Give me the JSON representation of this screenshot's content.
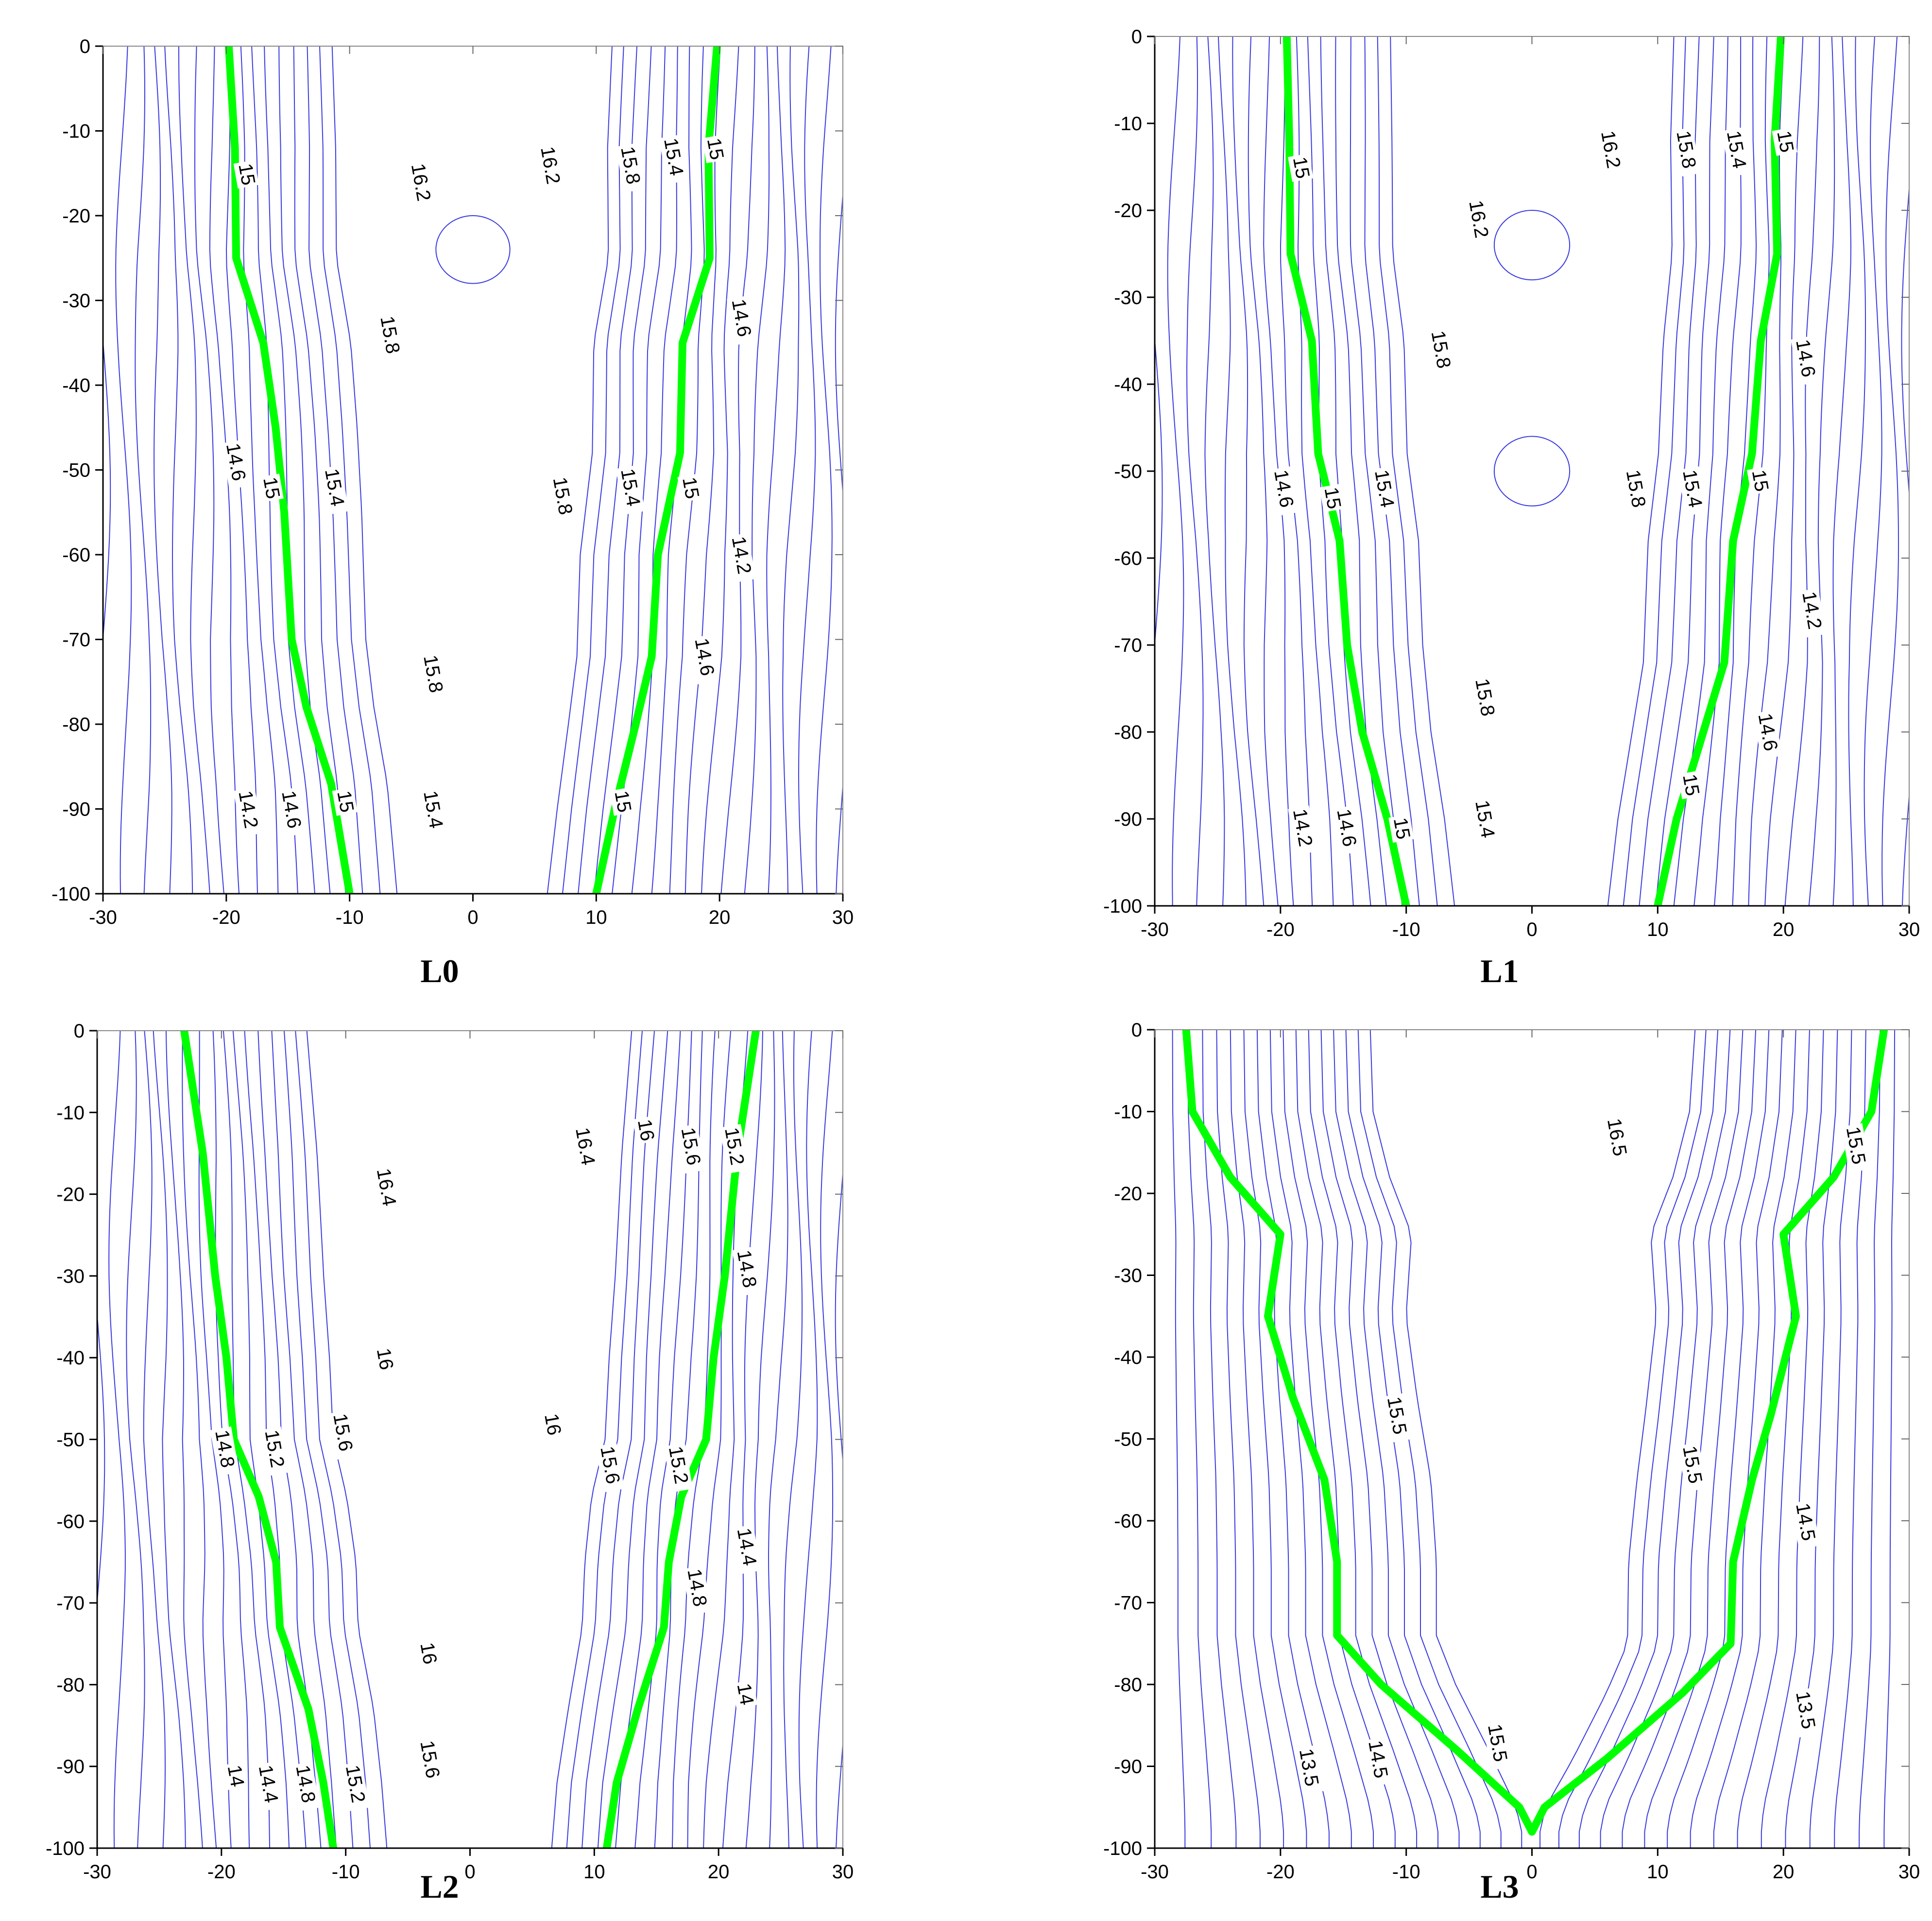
{
  "style": {
    "contour_color": "#3a3ae0",
    "highlight_color": "#00ff00",
    "axis_color": "#000000"
  },
  "chart_data": [
    {
      "type": "contour",
      "caption": "L0",
      "xlim": [
        -30,
        30
      ],
      "ylim": [
        -100,
        0
      ],
      "xticks": [
        "-30",
        "-20",
        "-10",
        "0",
        "10",
        "20",
        "30"
      ],
      "yticks": [
        "0",
        "-10",
        "-20",
        "-30",
        "-40",
        "-50",
        "-60",
        "-70",
        "-80",
        "-90",
        "-100"
      ],
      "highlight_level": 15,
      "highlight_paths": [
        [
          [
            -19.8,
            0
          ],
          [
            -19.3,
            -12
          ],
          [
            -19.2,
            -25
          ],
          [
            -17,
            -35
          ],
          [
            -16,
            -45
          ],
          [
            -15.3,
            -55
          ],
          [
            -14.7,
            -70
          ],
          [
            -13.5,
            -78
          ],
          [
            -11.5,
            -87
          ],
          [
            -10,
            -100
          ]
        ],
        [
          [
            19.8,
            0
          ],
          [
            19.1,
            -12
          ],
          [
            19.2,
            -25
          ],
          [
            17,
            -35
          ],
          [
            16.8,
            -48
          ],
          [
            15,
            -60
          ],
          [
            14.5,
            -72
          ],
          [
            13.2,
            -80
          ],
          [
            11.5,
            -90
          ],
          [
            10,
            -100
          ]
        ]
      ],
      "contour_labels": [
        {
          "text": "15",
          "x": -19.0,
          "y": -14
        },
        {
          "text": "15",
          "x": -17.0,
          "y": -51
        },
        {
          "text": "15",
          "x": -11.0,
          "y": -88
        },
        {
          "text": "14.6",
          "x": -20.0,
          "y": -47
        },
        {
          "text": "14.2",
          "x": -19.0,
          "y": -88
        },
        {
          "text": "14.6",
          "x": -15.5,
          "y": -88
        },
        {
          "text": "16.2",
          "x": -5.0,
          "y": -14
        },
        {
          "text": "15.8",
          "x": -7.5,
          "y": -32
        },
        {
          "text": "15.4",
          "x": -12.0,
          "y": -50
        },
        {
          "text": "15.8",
          "x": -4.0,
          "y": -72
        },
        {
          "text": "15.4",
          "x": -4.0,
          "y": -88
        },
        {
          "text": "16.2",
          "x": 5.5,
          "y": -12
        },
        {
          "text": "15.8",
          "x": 6.5,
          "y": -51
        },
        {
          "text": "15.8",
          "x": 12.0,
          "y": -12
        },
        {
          "text": "15.4",
          "x": 15.5,
          "y": -11
        },
        {
          "text": "15",
          "x": 19.0,
          "y": -11
        },
        {
          "text": "14.6",
          "x": 21.0,
          "y": -30
        },
        {
          "text": "15",
          "x": 17.0,
          "y": -51
        },
        {
          "text": "15.4",
          "x": 12.0,
          "y": -50
        },
        {
          "text": "14.2",
          "x": 21.0,
          "y": -58
        },
        {
          "text": "14.6",
          "x": 18.0,
          "y": -70
        },
        {
          "text": "15",
          "x": 11.5,
          "y": -88
        }
      ]
    },
    {
      "type": "contour",
      "caption": "L1",
      "xlim": [
        -30,
        30
      ],
      "ylim": [
        -100,
        0
      ],
      "xticks": [
        "-30",
        "-20",
        "-10",
        "0",
        "10",
        "20",
        "30"
      ],
      "yticks": [
        "0",
        "-10",
        "-20",
        "-30",
        "-40",
        "-50",
        "-60",
        "-70",
        "-80",
        "-90",
        "-100"
      ],
      "highlight_level": 15,
      "highlight_paths": [
        [
          [
            -19.5,
            0
          ],
          [
            -19.3,
            -12
          ],
          [
            -19.2,
            -25
          ],
          [
            -17.5,
            -35
          ],
          [
            -17,
            -48
          ],
          [
            -15.3,
            -58
          ],
          [
            -14.7,
            -70
          ],
          [
            -13.5,
            -80
          ],
          [
            -11.5,
            -90
          ],
          [
            -10,
            -100
          ]
        ],
        [
          [
            19.8,
            0
          ],
          [
            19.3,
            -12
          ],
          [
            19.5,
            -25
          ],
          [
            18.2,
            -35
          ],
          [
            17.5,
            -48
          ],
          [
            16,
            -58
          ],
          [
            15.3,
            -72
          ],
          [
            13,
            -83
          ],
          [
            11.5,
            -90
          ],
          [
            10,
            -100
          ]
        ]
      ],
      "contour_labels": [
        {
          "text": "15",
          "x": -19.0,
          "y": -14
        },
        {
          "text": "14.6",
          "x": -20.5,
          "y": -50
        },
        {
          "text": "15",
          "x": -16.5,
          "y": -52
        },
        {
          "text": "15.4",
          "x": -12.5,
          "y": -50
        },
        {
          "text": "14.2",
          "x": -19.0,
          "y": -89
        },
        {
          "text": "14.6",
          "x": -15.5,
          "y": -89
        },
        {
          "text": "15",
          "x": -11.0,
          "y": -90
        },
        {
          "text": "16.2",
          "x": -5.0,
          "y": -19
        },
        {
          "text": "15.8",
          "x": -8.0,
          "y": -34
        },
        {
          "text": "15.8",
          "x": -4.5,
          "y": -74
        },
        {
          "text": "15.4",
          "x": -4.5,
          "y": -88
        },
        {
          "text": "16.2",
          "x": 5.5,
          "y": -11
        },
        {
          "text": "15.8",
          "x": 7.5,
          "y": -50
        },
        {
          "text": "15.8",
          "x": 11.5,
          "y": -11
        },
        {
          "text": "15.4",
          "x": 15.5,
          "y": -11
        },
        {
          "text": "15",
          "x": 19.5,
          "y": -11
        },
        {
          "text": "14.6",
          "x": 21.0,
          "y": -35
        },
        {
          "text": "15",
          "x": 17.5,
          "y": -50
        },
        {
          "text": "15.4",
          "x": 12.0,
          "y": -50
        },
        {
          "text": "14.2",
          "x": 21.5,
          "y": -64
        },
        {
          "text": "14.6",
          "x": 18.0,
          "y": -78
        },
        {
          "text": "15",
          "x": 12.0,
          "y": -85
        }
      ]
    },
    {
      "type": "contour",
      "caption": "L2",
      "xlim": [
        -30,
        30
      ],
      "ylim": [
        -100,
        0
      ],
      "xticks": [
        "-30",
        "-20",
        "-10",
        "0",
        "10",
        "20",
        "30"
      ],
      "yticks": [
        "0",
        "-10",
        "-20",
        "-30",
        "-40",
        "-50",
        "-60",
        "-70",
        "-80",
        "-90",
        "-100"
      ],
      "highlight_level": 15,
      "highlight_paths": [
        [
          [
            -23,
            0
          ],
          [
            -21.5,
            -15
          ],
          [
            -20.5,
            -30
          ],
          [
            -19.6,
            -40
          ],
          [
            -19,
            -50
          ],
          [
            -17,
            -57
          ],
          [
            -15.6,
            -65
          ],
          [
            -15.3,
            -73
          ],
          [
            -13,
            -83
          ],
          [
            -11.8,
            -92
          ],
          [
            -11,
            -100
          ]
        ],
        [
          [
            23,
            0
          ],
          [
            21.5,
            -15
          ],
          [
            20.5,
            -30
          ],
          [
            19.6,
            -40
          ],
          [
            19,
            -50
          ],
          [
            17,
            -57
          ],
          [
            16,
            -65
          ],
          [
            15.6,
            -73
          ],
          [
            13.5,
            -83
          ],
          [
            11.8,
            -92
          ],
          [
            11,
            -100
          ]
        ]
      ],
      "contour_labels": [
        {
          "text": "16.4",
          "x": -7.5,
          "y": -17
        },
        {
          "text": "16",
          "x": -7.5,
          "y": -39
        },
        {
          "text": "15.6",
          "x": -11.0,
          "y": -47
        },
        {
          "text": "15.2",
          "x": -16.5,
          "y": -49
        },
        {
          "text": "14.8",
          "x": -20.5,
          "y": -49
        },
        {
          "text": "16",
          "x": -4.0,
          "y": -75
        },
        {
          "text": "15.6",
          "x": -4.0,
          "y": -87
        },
        {
          "text": "15.2",
          "x": -10.0,
          "y": -90
        },
        {
          "text": "14.8",
          "x": -14.0,
          "y": -90
        },
        {
          "text": "14.4",
          "x": -17.0,
          "y": -90
        },
        {
          "text": "14",
          "x": -19.5,
          "y": -90
        },
        {
          "text": "16.4",
          "x": 8.5,
          "y": -12
        },
        {
          "text": "16",
          "x": 13.5,
          "y": -11
        },
        {
          "text": "15.6",
          "x": 17.0,
          "y": -12
        },
        {
          "text": "15.2",
          "x": 20.5,
          "y": -12
        },
        {
          "text": "14.8",
          "x": 21.5,
          "y": -27
        },
        {
          "text": "16",
          "x": 6.0,
          "y": -47
        },
        {
          "text": "15.6",
          "x": 10.5,
          "y": -51
        },
        {
          "text": "15.2",
          "x": 16.0,
          "y": -51
        },
        {
          "text": "14.4",
          "x": 21.5,
          "y": -61
        },
        {
          "text": "14.8",
          "x": 17.5,
          "y": -66
        },
        {
          "text": "14",
          "x": 21.5,
          "y": -80
        }
      ]
    },
    {
      "type": "contour",
      "caption": "L3",
      "xlim": [
        -30,
        30
      ],
      "ylim": [
        -100,
        0
      ],
      "xticks": [
        "-30",
        "-20",
        "-10",
        "0",
        "10",
        "20",
        "30"
      ],
      "yticks": [
        "0",
        "-10",
        "-20",
        "-30",
        "-40",
        "-50",
        "-60",
        "-70",
        "-80",
        "-90",
        "-100"
      ],
      "highlight_level": 15,
      "highlight_paths": [
        [
          [
            -27.5,
            0
          ],
          [
            -27,
            -10
          ],
          [
            -24,
            -18
          ],
          [
            -20,
            -25
          ],
          [
            -21,
            -35
          ],
          [
            -19,
            -45
          ],
          [
            -16.5,
            -55
          ],
          [
            -15.5,
            -65
          ],
          [
            -15.5,
            -74
          ],
          [
            -12,
            -80
          ],
          [
            -6,
            -88
          ],
          [
            -1,
            -95
          ],
          [
            0,
            -98
          ],
          [
            1,
            -95
          ],
          [
            6,
            -89
          ],
          [
            12,
            -81
          ],
          [
            15.8,
            -75
          ],
          [
            16,
            -65
          ],
          [
            17.5,
            -55
          ],
          [
            19,
            -47
          ],
          [
            21,
            -35
          ],
          [
            20,
            -25
          ],
          [
            24,
            -18
          ],
          [
            27,
            -10
          ],
          [
            28,
            0
          ]
        ]
      ],
      "contour_labels": [
        {
          "text": "16.5",
          "x": 6.0,
          "y": -11
        },
        {
          "text": "15.5",
          "x": -11.5,
          "y": -45
        },
        {
          "text": "15.5",
          "x": 12.0,
          "y": -51
        },
        {
          "text": "15.5",
          "x": -3.5,
          "y": -85
        },
        {
          "text": "14.5",
          "x": -13.0,
          "y": -87
        },
        {
          "text": "13.5",
          "x": -18.5,
          "y": -88
        },
        {
          "text": "15.5",
          "x": 25.0,
          "y": -12
        },
        {
          "text": "14.5",
          "x": 21.0,
          "y": -58
        },
        {
          "text": "13.5",
          "x": 21.0,
          "y": -81
        }
      ]
    }
  ]
}
